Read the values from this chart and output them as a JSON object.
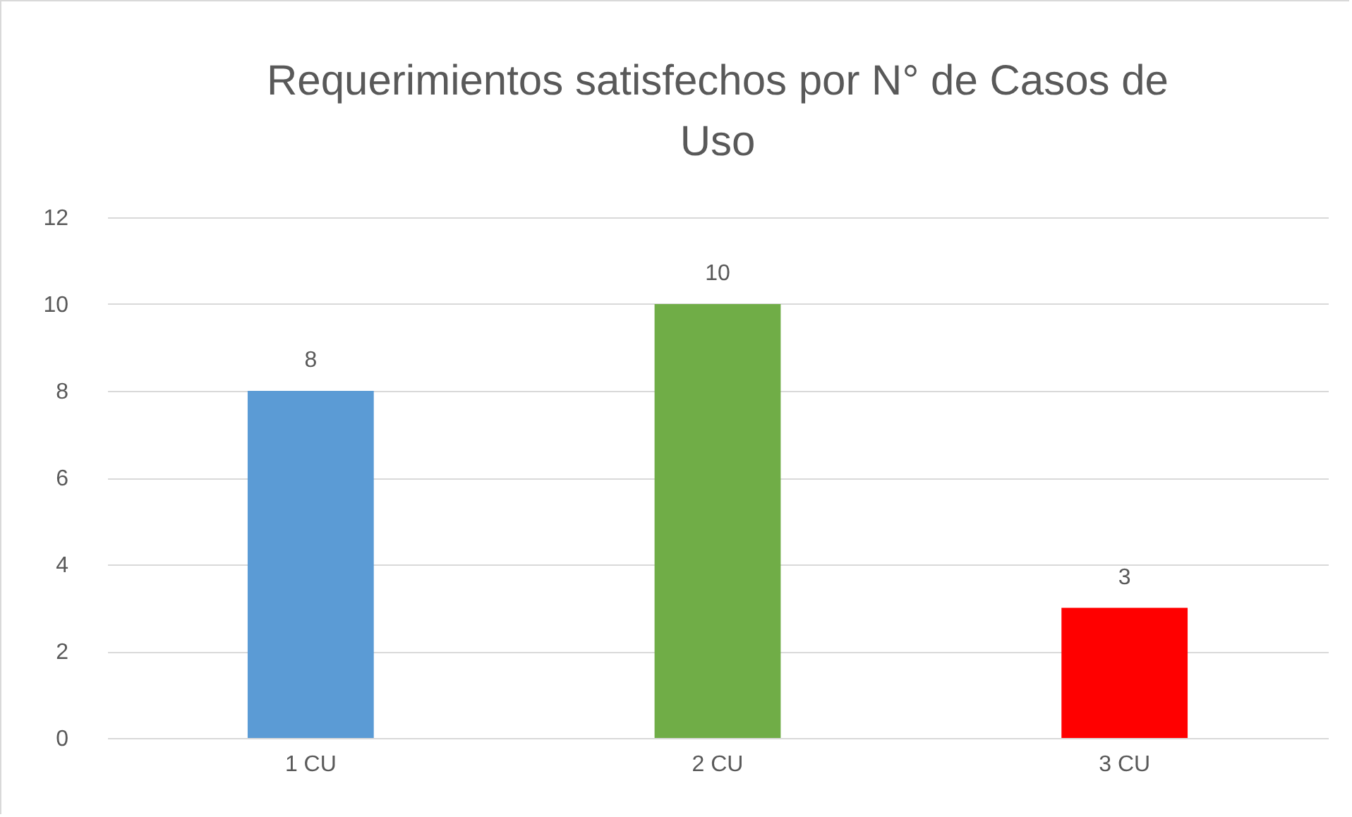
{
  "chart_data": {
    "type": "bar",
    "title": "Requerimientos satisfechos por N° de Casos de Uso",
    "categories": [
      "1 CU",
      "2 CU",
      "3 CU"
    ],
    "values": [
      8,
      10,
      3
    ],
    "colors": [
      "#5b9bd5",
      "#70ad47",
      "#ff0000"
    ],
    "ylim": [
      0,
      12
    ],
    "yticks": [
      0,
      2,
      4,
      6,
      8,
      10,
      12
    ],
    "grid": "y",
    "data_labels": true,
    "legend": false
  }
}
